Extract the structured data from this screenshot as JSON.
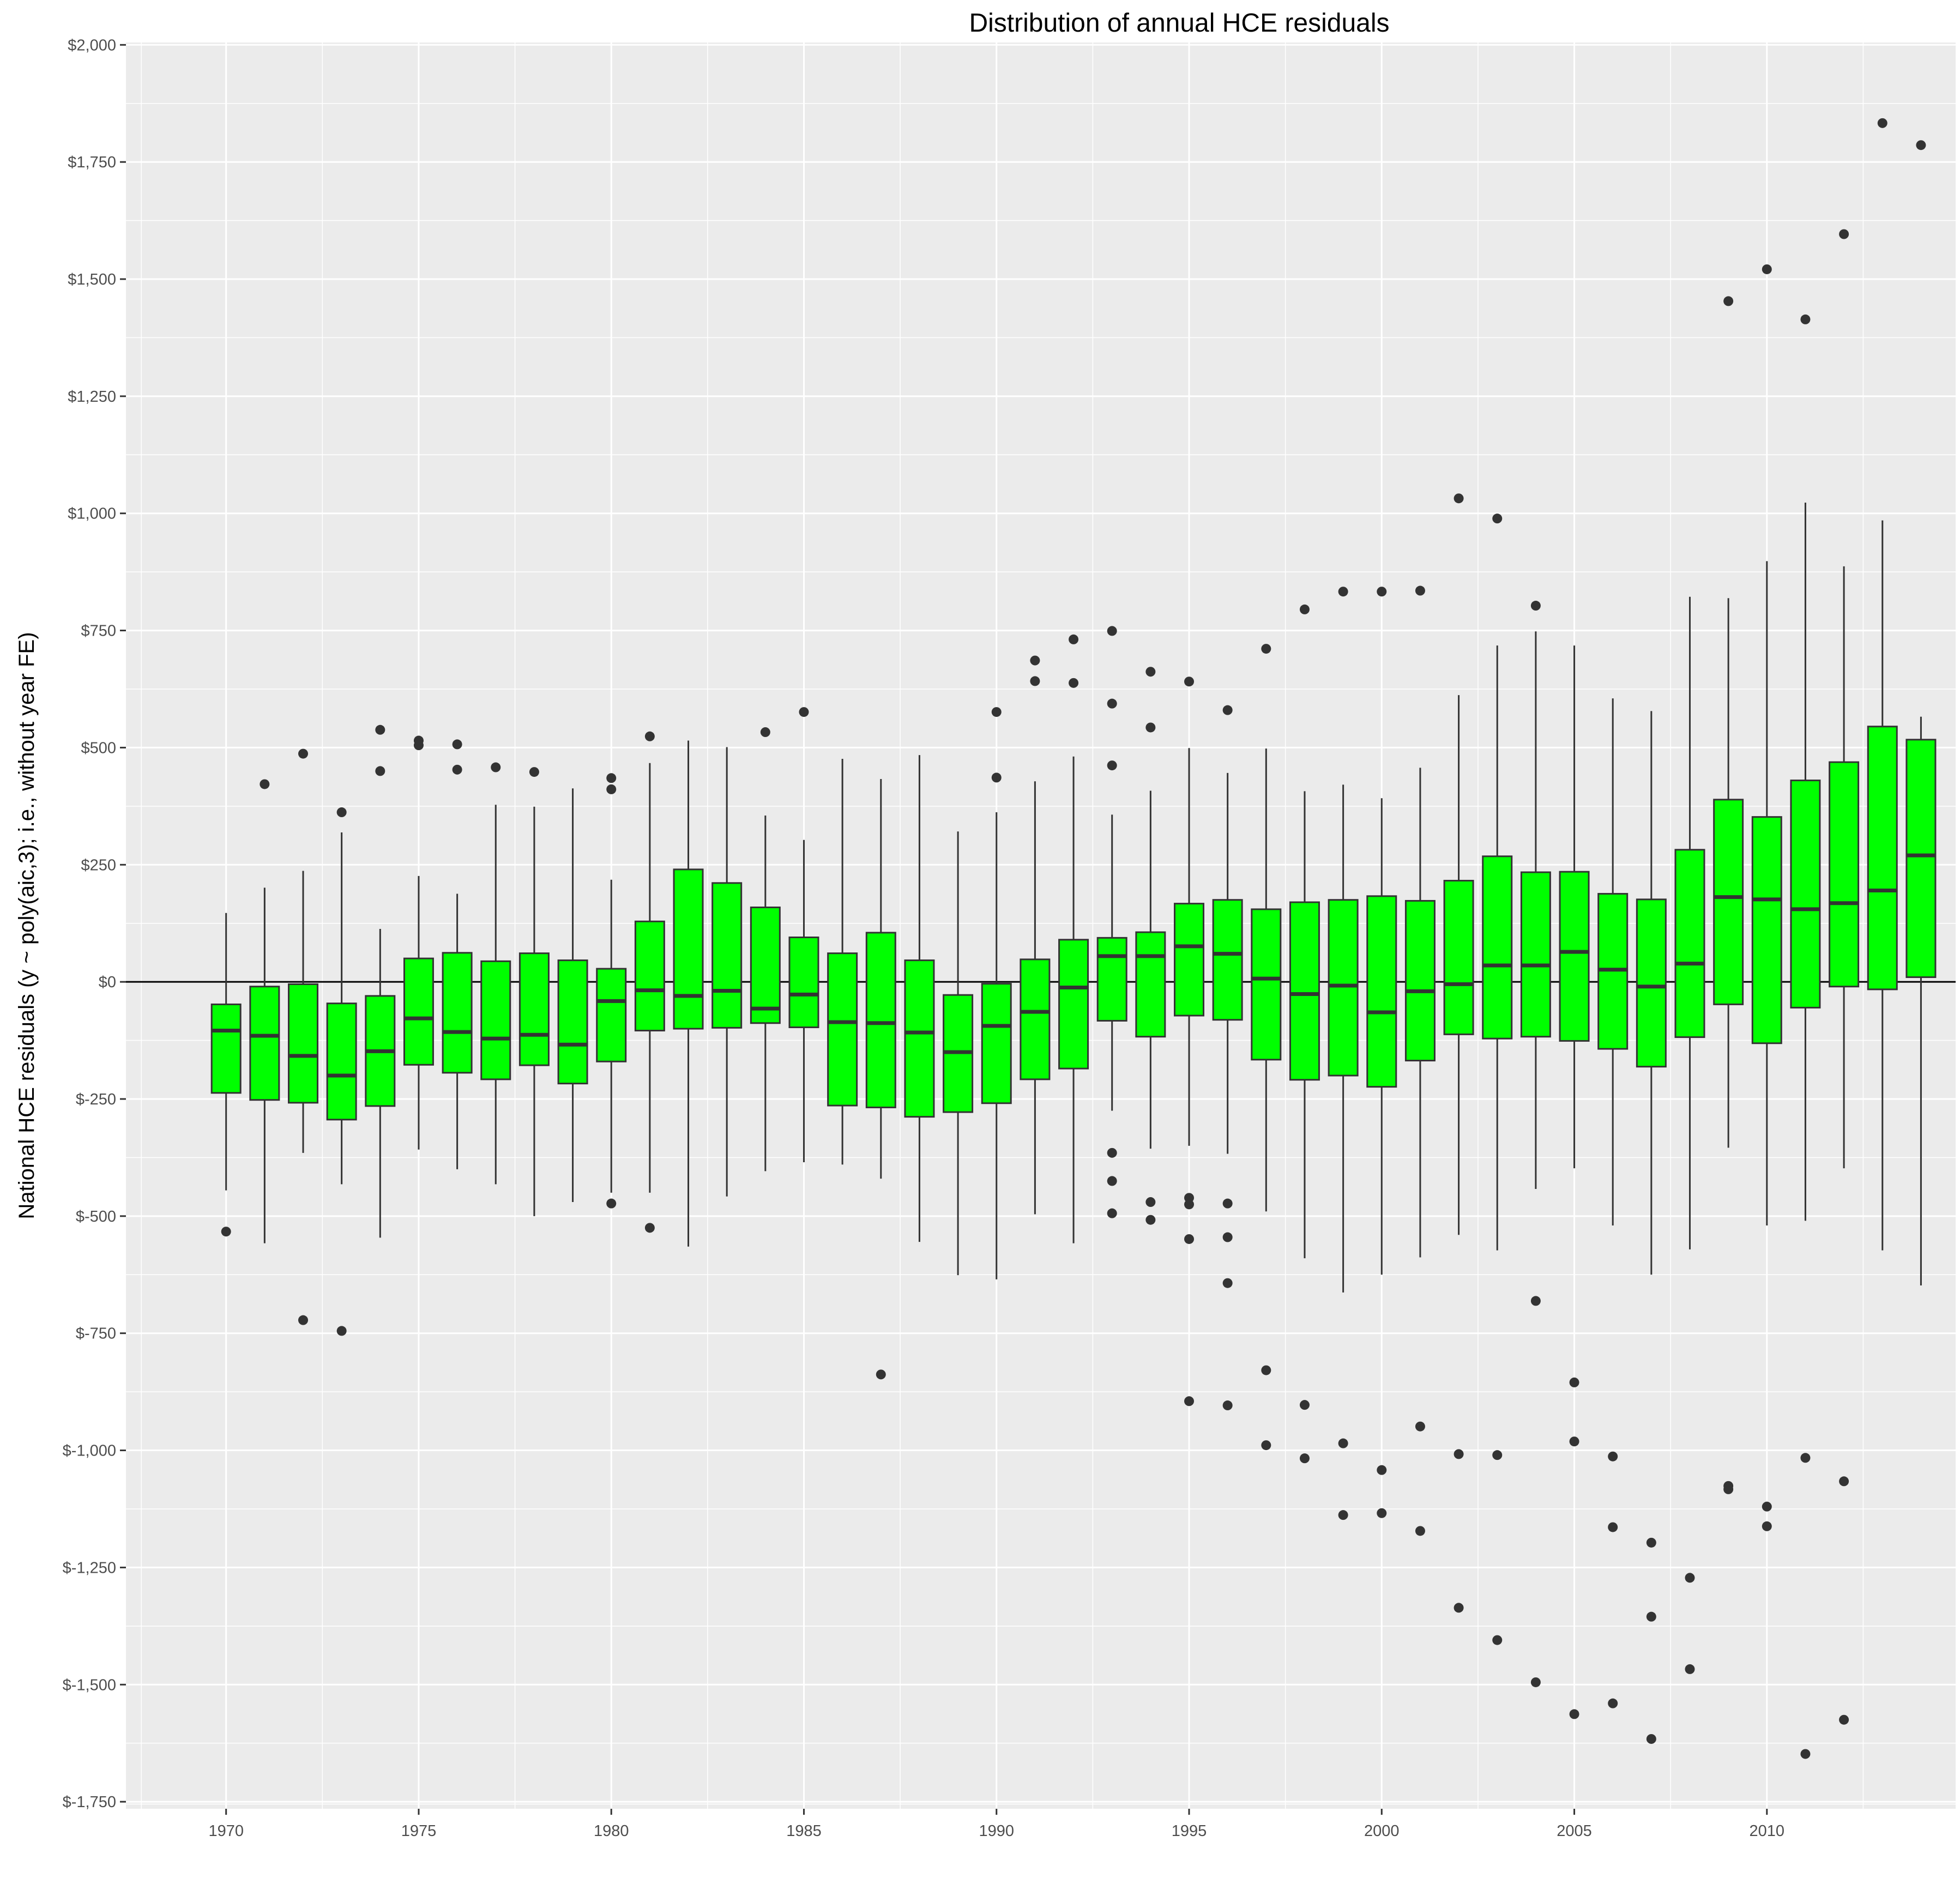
{
  "chart_data": {
    "type": "boxplot",
    "title": "Distribution of annual HCE residuals",
    "xlabel": "",
    "ylabel": "National HCE residuals (y ~ poly(aic,3); i.e., without year FE)",
    "x_ticks": [
      "1970",
      "1975",
      "1980",
      "1985",
      "1990",
      "1995",
      "2000",
      "2005",
      "2010"
    ],
    "y_ticks": [
      "$-1,750",
      "$-1,500",
      "$-1,250",
      "$-1,000",
      "$-750",
      "$-500",
      "$-250",
      "$0",
      "$250",
      "$500",
      "$750",
      "$1,000",
      "$1,250",
      "$1,500",
      "$1,750",
      "$2,000"
    ],
    "xlim": [
      1967.4,
      2014.9
    ],
    "ylim": [
      -1765,
      2005
    ],
    "grid": true,
    "legend": "none",
    "reference_line_y": 0,
    "colors": {
      "box_fill": "#00ff00",
      "box_border": "#333333",
      "outlier": "#333333",
      "panel_background": "#ebebeb",
      "grid": "#ffffff",
      "reference_line": "#000000"
    },
    "boxes": [
      {
        "x": 1970,
        "min": -445,
        "q1": -237,
        "median": -104,
        "q3": -48,
        "max": 147,
        "outliers": [
          -533
        ]
      },
      {
        "x": 1971,
        "min": -558,
        "q1": -252,
        "median": -115,
        "q3": -10,
        "max": 201,
        "outliers": [
          422
        ]
      },
      {
        "x": 1972,
        "min": -365,
        "q1": -258,
        "median": -158,
        "q3": -5,
        "max": 237,
        "outliers": [
          487,
          -722
        ]
      },
      {
        "x": 1973,
        "min": -432,
        "q1": -294,
        "median": -200,
        "q3": -46,
        "max": 319,
        "outliers": [
          362,
          -745
        ]
      },
      {
        "x": 1974,
        "min": -546,
        "q1": -265,
        "median": -148,
        "q3": -30,
        "max": 113,
        "outliers": [
          538,
          450
        ]
      },
      {
        "x": 1975,
        "min": -358,
        "q1": -177,
        "median": -78,
        "q3": 50,
        "max": 226,
        "outliers": [
          515,
          505
        ]
      },
      {
        "x": 1976,
        "min": -400,
        "q1": -194,
        "median": -107,
        "q3": 62,
        "max": 188,
        "outliers": [
          507,
          453
        ]
      },
      {
        "x": 1977,
        "min": -432,
        "q1": -208,
        "median": -121,
        "q3": 44,
        "max": 378,
        "outliers": [
          458
        ]
      },
      {
        "x": 1978,
        "min": -500,
        "q1": -178,
        "median": -113,
        "q3": 61,
        "max": 374,
        "outliers": [
          448
        ]
      },
      {
        "x": 1979,
        "min": -470,
        "q1": -217,
        "median": -134,
        "q3": 46,
        "max": 413,
        "outliers": []
      },
      {
        "x": 1980,
        "min": -450,
        "q1": -170,
        "median": -41,
        "q3": 28,
        "max": 218,
        "outliers": [
          435,
          411,
          -473
        ]
      },
      {
        "x": 1981,
        "min": -450,
        "q1": -104,
        "median": -18,
        "q3": 129,
        "max": 467,
        "outliers": [
          524,
          -525
        ]
      },
      {
        "x": 1982,
        "min": -565,
        "q1": -100,
        "median": -30,
        "q3": 240,
        "max": 515,
        "outliers": []
      },
      {
        "x": 1983,
        "min": -458,
        "q1": -98,
        "median": -19,
        "q3": 211,
        "max": 501,
        "outliers": []
      },
      {
        "x": 1984,
        "min": -404,
        "q1": -88,
        "median": -57,
        "q3": 159,
        "max": 355,
        "outliers": [
          533
        ]
      },
      {
        "x": 1985,
        "min": -385,
        "q1": -97,
        "median": -27,
        "q3": 95,
        "max": 303,
        "outliers": [
          576
        ]
      },
      {
        "x": 1986,
        "min": -390,
        "q1": -264,
        "median": -86,
        "q3": 61,
        "max": 476,
        "outliers": []
      },
      {
        "x": 1987,
        "min": -420,
        "q1": -268,
        "median": -88,
        "q3": 105,
        "max": 433,
        "outliers": [
          -838
        ]
      },
      {
        "x": 1988,
        "min": -555,
        "q1": -288,
        "median": -108,
        "q3": 46,
        "max": 484,
        "outliers": []
      },
      {
        "x": 1989,
        "min": -626,
        "q1": -278,
        "median": -150,
        "q3": -28,
        "max": 321,
        "outliers": []
      },
      {
        "x": 1990,
        "min": -635,
        "q1": -259,
        "median": -94,
        "q3": -4,
        "max": 362,
        "outliers": [
          576,
          436
        ]
      },
      {
        "x": 1991,
        "min": -496,
        "q1": -208,
        "median": -64,
        "q3": 48,
        "max": 428,
        "outliers": [
          686,
          642
        ]
      },
      {
        "x": 1992,
        "min": -558,
        "q1": -185,
        "median": -12,
        "q3": 90,
        "max": 481,
        "outliers": [
          731,
          638
        ]
      },
      {
        "x": 1993,
        "min": -275,
        "q1": -83,
        "median": 55,
        "q3": 94,
        "max": 357,
        "outliers": [
          749,
          594,
          462,
          -365,
          -425,
          -494
        ]
      },
      {
        "x": 1994,
        "min": -356,
        "q1": -117,
        "median": 55,
        "q3": 106,
        "max": 408,
        "outliers": [
          662,
          543,
          -470,
          -508
        ]
      },
      {
        "x": 1995,
        "min": -350,
        "q1": -72,
        "median": 76,
        "q3": 167,
        "max": 499,
        "outliers": [
          641,
          -461,
          -475,
          -549,
          -895
        ]
      },
      {
        "x": 1996,
        "min": -367,
        "q1": -81,
        "median": 60,
        "q3": 175,
        "max": 446,
        "outliers": [
          580,
          -473,
          -545,
          -643,
          -904
        ]
      },
      {
        "x": 1997,
        "min": -490,
        "q1": -166,
        "median": 7,
        "q3": 155,
        "max": 498,
        "outliers": [
          711,
          -829,
          -989
        ]
      },
      {
        "x": 1998,
        "min": -590,
        "q1": -209,
        "median": -26,
        "q3": 170,
        "max": 407,
        "outliers": [
          795,
          -903,
          -1017
        ]
      },
      {
        "x": 1999,
        "min": -663,
        "q1": -200,
        "median": -8,
        "q3": 175,
        "max": 421,
        "outliers": [
          833,
          -985,
          -1138
        ]
      },
      {
        "x": 2000,
        "min": -625,
        "q1": -224,
        "median": -65,
        "q3": 183,
        "max": 392,
        "outliers": [
          833,
          -1042,
          -1134
        ]
      },
      {
        "x": 2001,
        "min": -588,
        "q1": -168,
        "median": -20,
        "q3": 173,
        "max": 457,
        "outliers": [
          835,
          -949,
          -1172
        ]
      },
      {
        "x": 2002,
        "min": -540,
        "q1": -112,
        "median": -5,
        "q3": 216,
        "max": 612,
        "outliers": [
          1032,
          -1008,
          -1336
        ]
      },
      {
        "x": 2003,
        "min": -573,
        "q1": -121,
        "median": 35,
        "q3": 268,
        "max": 718,
        "outliers": [
          989,
          -1010,
          -1405
        ]
      },
      {
        "x": 2004,
        "min": -442,
        "q1": -117,
        "median": 35,
        "q3": 234,
        "max": 748,
        "outliers": [
          803,
          -681,
          -1495
        ]
      },
      {
        "x": 2005,
        "min": -398,
        "q1": -126,
        "median": 64,
        "q3": 235,
        "max": 718,
        "outliers": [
          -855,
          -981,
          -1563
        ]
      },
      {
        "x": 2006,
        "min": -520,
        "q1": -143,
        "median": 26,
        "q3": 188,
        "max": 605,
        "outliers": [
          -1013,
          -1164,
          -1540
        ]
      },
      {
        "x": 2007,
        "min": -625,
        "q1": -181,
        "median": -10,
        "q3": 176,
        "max": 578,
        "outliers": [
          -1197,
          -1355,
          -1616
        ]
      },
      {
        "x": 2008,
        "min": -571,
        "q1": -118,
        "median": 39,
        "q3": 282,
        "max": 822,
        "outliers": [
          -1272,
          -1467
        ]
      },
      {
        "x": 2009,
        "min": -354,
        "q1": -48,
        "median": 181,
        "q3": 389,
        "max": 819,
        "outliers": [
          1453,
          -1076,
          -1083
        ]
      },
      {
        "x": 2010,
        "min": -520,
        "q1": -131,
        "median": 176,
        "q3": 352,
        "max": 898,
        "outliers": [
          1521,
          -1120,
          -1162
        ]
      },
      {
        "x": 2011,
        "min": -510,
        "q1": -55,
        "median": 155,
        "q3": 430,
        "max": 1023,
        "outliers": [
          1414,
          -1016,
          -1648
        ]
      },
      {
        "x": 2012,
        "min": -398,
        "q1": -10,
        "median": 168,
        "q3": 469,
        "max": 887,
        "outliers": [
          1596,
          -1066,
          -1575
        ]
      },
      {
        "x": 2013,
        "min": -573,
        "q1": -16,
        "median": 195,
        "q3": 545,
        "max": 985,
        "outliers": [
          1833
        ]
      },
      {
        "x": 2014,
        "min": -648,
        "q1": 10,
        "median": 270,
        "q3": 517,
        "max": 566,
        "outliers": [
          1786
        ]
      }
    ]
  }
}
